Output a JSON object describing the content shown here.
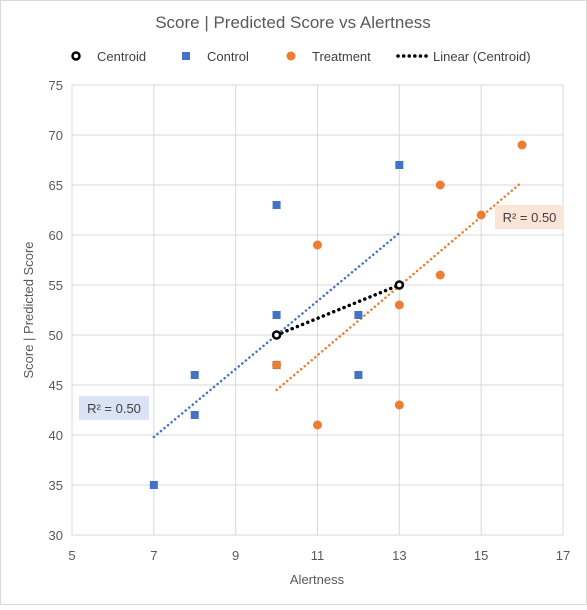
{
  "chart_data": {
    "type": "scatter",
    "title": "Score | Predicted Score vs Alertness",
    "xlabel": "Alertness",
    "ylabel": "Score | Predicted Score",
    "xlim": [
      5,
      17
    ],
    "ylim": [
      30,
      75
    ],
    "xticks": [
      5,
      7,
      9,
      11,
      13,
      15,
      17
    ],
    "yticks": [
      30,
      35,
      40,
      45,
      50,
      55,
      60,
      65,
      70,
      75
    ],
    "grid": true,
    "legend_position": "top",
    "legend": [
      "Centroid",
      "Control",
      "Treatment",
      "Linear (Centroid)"
    ],
    "series": [
      {
        "name": "Centroid",
        "marker": "circle-outline",
        "color": "#000000",
        "points": [
          [
            10,
            50
          ],
          [
            13,
            55
          ]
        ]
      },
      {
        "name": "Control",
        "marker": "square",
        "color": "#4472C4",
        "points": [
          [
            7,
            35
          ],
          [
            8,
            42
          ],
          [
            8,
            46
          ],
          [
            10,
            47
          ],
          [
            10,
            52
          ],
          [
            10,
            63
          ],
          [
            12,
            46
          ],
          [
            12,
            52
          ],
          [
            13,
            67
          ]
        ]
      },
      {
        "name": "Treatment",
        "marker": "circle",
        "color": "#ED7D31",
        "points": [
          [
            10,
            47
          ],
          [
            11,
            41
          ],
          [
            11,
            59
          ],
          [
            13,
            43
          ],
          [
            13,
            53
          ],
          [
            14,
            56
          ],
          [
            14,
            65
          ],
          [
            15,
            62
          ],
          [
            16,
            69
          ]
        ]
      }
    ],
    "trendlines": [
      {
        "name": "Linear (Centroid)",
        "color": "#000000",
        "style": "dotted",
        "from": [
          10,
          50
        ],
        "to": [
          13,
          55
        ]
      },
      {
        "color": "#4472C4",
        "style": "dotted",
        "from": [
          7,
          39.8
        ],
        "to": [
          13,
          60.2
        ]
      },
      {
        "color": "#ED7D31",
        "style": "dotted",
        "from": [
          10,
          44.5
        ],
        "to": [
          16,
          65.3
        ]
      }
    ],
    "annotations": [
      {
        "text": "R² = 0.50",
        "color": "#4472C4",
        "bg": "#DAE3F3",
        "position": "left"
      },
      {
        "text": "R² = 0.50",
        "color": "#ED7D31",
        "bg": "#FBE5D6",
        "position": "right"
      }
    ]
  }
}
